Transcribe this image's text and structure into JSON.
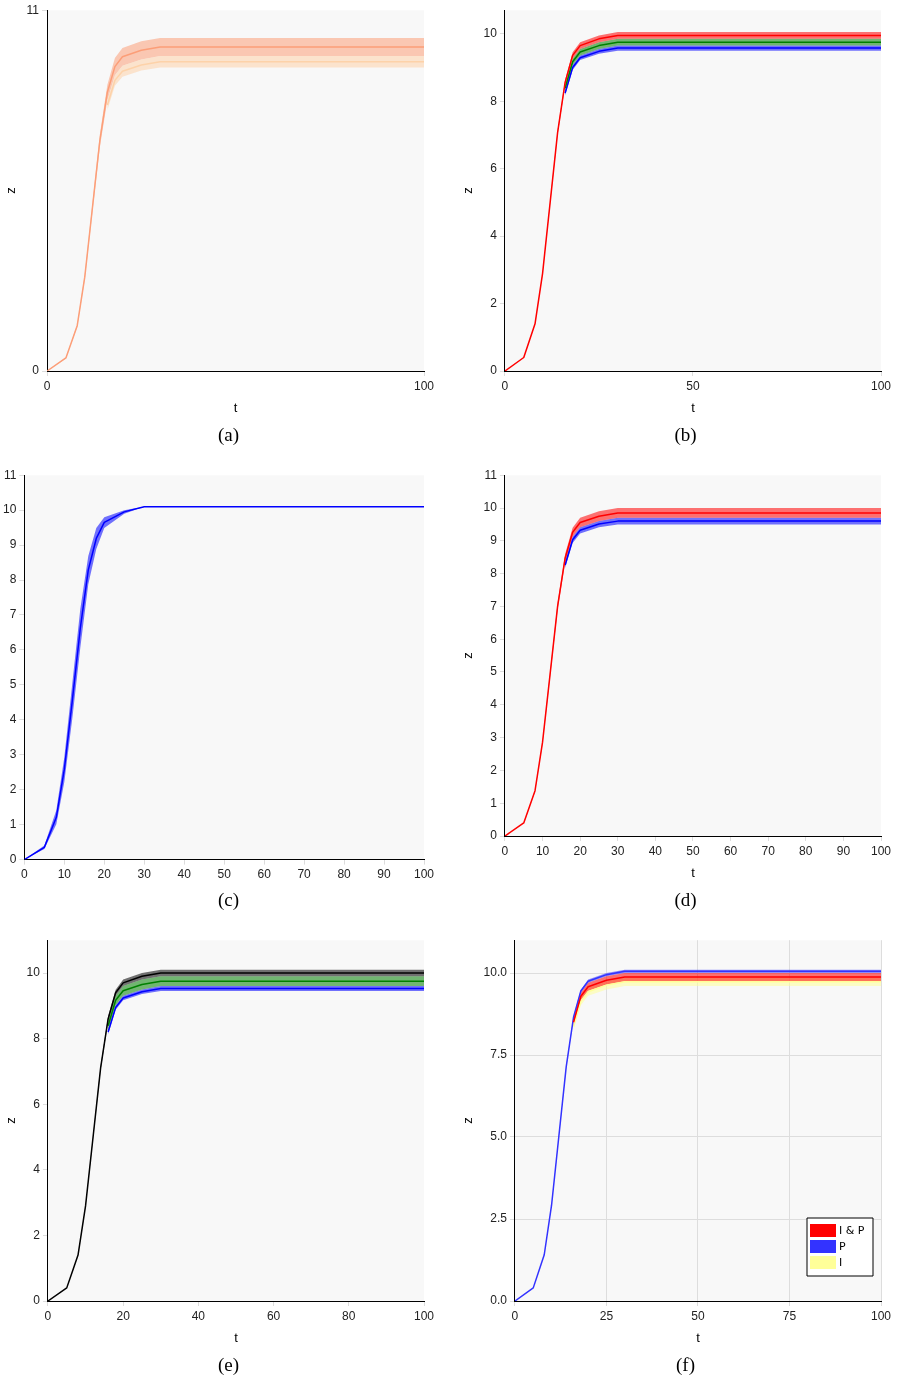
{
  "chart_data": [
    {
      "type": "line",
      "xlabel": "t",
      "ylabel": "z",
      "x": [
        0,
        5,
        8,
        10,
        12,
        14,
        16,
        18,
        20,
        25,
        30,
        40,
        100
      ],
      "xlim": [
        0,
        100
      ],
      "ylim": [
        0,
        11
      ],
      "xticks": [
        0,
        100
      ],
      "yticks": [
        0,
        11
      ],
      "grid": false,
      "legend": false,
      "annotations": [
        "(a)"
      ],
      "series": [
        {
          "color": "#fdd2a9",
          "values": [
            null,
            null,
            null,
            null,
            null,
            null,
            8.11,
            8.86,
            9.14,
            9.33,
            9.43,
            9.43,
            9.43
          ],
          "lower": [
            null,
            null,
            null,
            null,
            null,
            null,
            7.96,
            8.7,
            8.97,
            9.16,
            9.25,
            9.25,
            9.25
          ],
          "upper": [
            null,
            null,
            null,
            null,
            null,
            null,
            8.26,
            9.02,
            9.31,
            9.5,
            9.6,
            9.6,
            9.6
          ]
        },
        {
          "color": "#fc9e78",
          "values": [
            0,
            0.4,
            1.38,
            2.86,
            4.94,
            7.02,
            8.5,
            9.28,
            9.58,
            9.78,
            9.88,
            9.88,
            9.88
          ],
          "lower": [
            0,
            0.38,
            1.34,
            2.78,
            4.8,
            6.82,
            8.26,
            9.02,
            9.31,
            9.5,
            9.6,
            9.6,
            9.6
          ],
          "upper": [
            0,
            0.41,
            1.42,
            2.94,
            5.08,
            7.21,
            8.73,
            9.54,
            9.85,
            10.05,
            10.15,
            10.15,
            10.15
          ]
        }
      ]
    },
    {
      "type": "line",
      "xlabel": "t",
      "ylabel": "z",
      "x": [
        0,
        5,
        8,
        10,
        12,
        14,
        16,
        18,
        20,
        25,
        30,
        40,
        100
      ],
      "xlim": [
        0,
        100
      ],
      "ylim": [
        0,
        10.7
      ],
      "xticks": [
        0,
        50,
        100
      ],
      "yticks": [
        0,
        2,
        4,
        6,
        8,
        10
      ],
      "grid": false,
      "legend": false,
      "annotations": [
        "(b)"
      ],
      "series": [
        {
          "color": "#ff0000",
          "values": [
            0,
            0.4,
            1.4,
            2.89,
            4.98,
            7.07,
            8.56,
            9.36,
            9.65,
            9.85,
            9.95,
            9.95,
            9.95
          ],
          "lower": [
            0,
            0.39,
            1.38,
            2.86,
            4.93,
            6.99,
            8.47,
            9.26,
            9.55,
            9.75,
            9.85,
            9.85,
            9.85
          ],
          "upper": [
            0,
            0.4,
            1.41,
            2.91,
            5.03,
            7.14,
            8.64,
            9.45,
            9.75,
            9.95,
            10.05,
            10.05,
            10.05
          ]
        },
        {
          "color": "#008000",
          "values": [
            null,
            null,
            null,
            null,
            null,
            null,
            8.39,
            9.17,
            9.46,
            9.65,
            9.75,
            9.75,
            9.75
          ],
          "lower": [
            null,
            null,
            null,
            null,
            null,
            null,
            8.3,
            9.07,
            9.36,
            9.55,
            9.65,
            9.65,
            9.65
          ],
          "upper": [
            null,
            null,
            null,
            null,
            null,
            null,
            8.47,
            9.26,
            9.55,
            9.75,
            9.85,
            9.85,
            9.85
          ]
        },
        {
          "color": "#0000ff",
          "values": [
            null,
            null,
            null,
            null,
            null,
            null,
            8.24,
            9,
            9.29,
            9.48,
            9.58,
            9.58,
            9.58
          ],
          "lower": [
            null,
            null,
            null,
            null,
            null,
            null,
            8.17,
            8.93,
            9.22,
            9.41,
            9.5,
            9.5,
            9.5
          ],
          "upper": [
            null,
            null,
            null,
            null,
            null,
            null,
            8.3,
            9.07,
            9.36,
            9.55,
            9.65,
            9.65,
            9.65
          ]
        }
      ]
    },
    {
      "type": "line",
      "x": [
        0,
        5,
        8,
        10,
        12,
        14,
        16,
        18,
        20,
        25,
        30,
        40,
        100
      ],
      "xlim": [
        0,
        100
      ],
      "ylim": [
        0,
        11
      ],
      "xticks": [
        0,
        10,
        20,
        30,
        40,
        50,
        60,
        70,
        80,
        90,
        100
      ],
      "yticks": [
        0,
        1,
        2,
        3,
        4,
        5,
        6,
        7,
        8,
        9,
        10,
        11
      ],
      "grid": false,
      "legend": false,
      "annotations": [
        "(c)"
      ],
      "series": [
        {
          "color": "#0000ff",
          "values": [
            0,
            0.35,
            1.21,
            2.58,
            4.55,
            6.62,
            8.29,
            9.19,
            9.65,
            9.95,
            10.1,
            10.1,
            10.1
          ],
          "lower": [
            0,
            0.3,
            1.01,
            2.22,
            4.04,
            6.06,
            7.88,
            8.89,
            9.49,
            9.9,
            10.1,
            10.1,
            10.1
          ],
          "upper": [
            0,
            0.4,
            1.41,
            2.93,
            5.05,
            7.17,
            8.69,
            9.49,
            9.8,
            10,
            10.1,
            10.1,
            10.1
          ]
        }
      ]
    },
    {
      "type": "line",
      "xlabel": "t",
      "ylabel": "z",
      "x": [
        0,
        5,
        8,
        10,
        12,
        14,
        16,
        18,
        20,
        25,
        30,
        40,
        100
      ],
      "xlim": [
        0,
        100
      ],
      "ylim": [
        0,
        11
      ],
      "xticks": [
        0,
        10,
        20,
        30,
        40,
        50,
        60,
        70,
        80,
        90,
        100
      ],
      "yticks": [
        0,
        1,
        2,
        3,
        4,
        5,
        6,
        7,
        8,
        9,
        10,
        11
      ],
      "grid": false,
      "legend": false,
      "annotations": [
        "(d)"
      ],
      "series": [
        {
          "color": "#ff0000",
          "values": [
            0,
            0.4,
            1.38,
            2.86,
            4.93,
            7,
            8.47,
            9.26,
            9.56,
            9.75,
            9.85,
            9.85,
            9.85
          ],
          "lower": [
            0,
            0.39,
            1.36,
            2.81,
            4.85,
            6.89,
            8.34,
            9.12,
            9.41,
            9.6,
            9.7,
            9.7,
            9.7
          ],
          "upper": [
            0,
            0.4,
            1.4,
            2.9,
            5,
            7.1,
            8.6,
            9.4,
            9.7,
            9.9,
            10,
            10,
            10
          ]
        },
        {
          "color": "#0000ff",
          "values": [
            null,
            null,
            null,
            null,
            null,
            null,
            8.26,
            9.03,
            9.32,
            9.51,
            9.6,
            9.6,
            9.6
          ],
          "lower": [
            null,
            null,
            null,
            null,
            null,
            null,
            8.17,
            8.93,
            9.22,
            9.41,
            9.5,
            9.5,
            9.5
          ],
          "upper": [
            null,
            null,
            null,
            null,
            null,
            null,
            8.34,
            9.12,
            9.41,
            9.6,
            9.7,
            9.7,
            9.7
          ]
        }
      ]
    },
    {
      "type": "line",
      "xlabel": "t",
      "ylabel": "z",
      "x": [
        0,
        5,
        8,
        10,
        12,
        14,
        16,
        18,
        20,
        25,
        30,
        40,
        100
      ],
      "xlim": [
        0,
        100
      ],
      "ylim": [
        0,
        11
      ],
      "xticks": [
        0,
        20,
        40,
        60,
        80,
        100
      ],
      "yticks": [
        0,
        2,
        4,
        6,
        8,
        10
      ],
      "grid": false,
      "legend": false,
      "annotations": [
        "(e)"
      ],
      "series": [
        {
          "color": "#000000",
          "values": [
            0,
            0.4,
            1.4,
            2.9,
            5,
            7.1,
            8.6,
            9.4,
            9.7,
            9.9,
            10,
            10,
            10
          ],
          "lower": [
            0,
            0.4,
            1.39,
            2.87,
            4.95,
            7.03,
            8.51,
            9.31,
            9.6,
            9.8,
            9.9,
            9.9,
            9.9
          ],
          "upper": [
            0,
            0.4,
            1.41,
            2.93,
            5.05,
            7.17,
            8.69,
            9.49,
            9.8,
            10,
            10.1,
            10.1,
            10.1
          ]
        },
        {
          "color": "#008000",
          "values": [
            null,
            null,
            null,
            null,
            null,
            null,
            8.39,
            9.17,
            9.46,
            9.65,
            9.75,
            9.75,
            9.75
          ],
          "lower": [
            null,
            null,
            null,
            null,
            null,
            null,
            8.26,
            9.02,
            9.31,
            9.5,
            9.6,
            9.6,
            9.6
          ],
          "upper": [
            null,
            null,
            null,
            null,
            null,
            null,
            8.51,
            9.31,
            9.6,
            9.8,
            9.9,
            9.9,
            9.9
          ]
        },
        {
          "color": "#0000ff",
          "values": [
            null,
            null,
            null,
            null,
            null,
            null,
            8.2,
            8.95,
            9.24,
            9.43,
            9.53,
            9.53,
            9.53
          ],
          "lower": [
            null,
            null,
            null,
            null,
            null,
            null,
            8.13,
            8.88,
            9.17,
            9.36,
            9.45,
            9.45,
            9.45
          ],
          "upper": [
            null,
            null,
            null,
            null,
            null,
            null,
            8.26,
            9.02,
            9.31,
            9.5,
            9.6,
            9.6,
            9.6
          ]
        }
      ]
    },
    {
      "type": "line",
      "xlabel": "t",
      "ylabel": "z",
      "x": [
        0,
        5,
        8,
        10,
        12,
        14,
        16,
        18,
        20,
        25,
        30,
        40,
        100
      ],
      "xlim": [
        0,
        100
      ],
      "ylim": [
        0,
        11
      ],
      "xticks": [
        0,
        25,
        50,
        75,
        100
      ],
      "yticks": [
        {
          "value": 0,
          "label": "0.0"
        },
        {
          "value": 2.5,
          "label": "2.5"
        },
        {
          "value": 5,
          "label": "5.0"
        },
        {
          "value": 7.5,
          "label": "7.5"
        },
        {
          "value": 10,
          "label": "10.0"
        }
      ],
      "grid": true,
      "legend": "bottom right",
      "annotations": [
        "(f)"
      ],
      "series": [
        {
          "name": "I & P",
          "color": "#ff0000",
          "values": [
            null,
            null,
            null,
            null,
            null,
            null,
            8.5,
            9.29,
            9.58,
            9.78,
            9.88,
            9.88,
            9.88
          ],
          "lower": [
            null,
            null,
            null,
            null,
            null,
            null,
            8.39,
            9.17,
            9.46,
            9.65,
            9.75,
            9.75,
            9.75
          ],
          "upper": [
            null,
            null,
            null,
            null,
            null,
            null,
            8.6,
            9.4,
            9.7,
            9.9,
            10,
            10,
            10
          ]
        },
        {
          "name": "P",
          "color": "#3333ff",
          "values": [
            0,
            0.4,
            1.41,
            2.92,
            5.03,
            7.14,
            8.65,
            9.45,
            9.75,
            9.95,
            10.05,
            10.05,
            10.05
          ],
          "lower": [
            0,
            0.4,
            1.4,
            2.9,
            5,
            7.1,
            8.6,
            9.4,
            9.7,
            9.9,
            10,
            10,
            10
          ],
          "upper": [
            0,
            0.4,
            1.41,
            2.93,
            5.05,
            7.17,
            8.69,
            9.49,
            9.8,
            10,
            10.1,
            10.1,
            10.1
          ]
        },
        {
          "name": "I",
          "color": "#ffff99",
          "values": [
            null,
            null,
            null,
            null,
            null,
            null,
            8.37,
            9.14,
            9.43,
            9.63,
            9.73,
            9.73,
            9.73
          ],
          "lower": [
            null,
            null,
            null,
            null,
            null,
            null,
            8.26,
            9.02,
            9.31,
            9.5,
            9.6,
            9.6,
            9.6
          ],
          "upper": [
            null,
            null,
            null,
            null,
            null,
            null,
            8.47,
            9.26,
            9.55,
            9.75,
            9.85,
            9.85,
            9.85
          ]
        }
      ]
    }
  ]
}
